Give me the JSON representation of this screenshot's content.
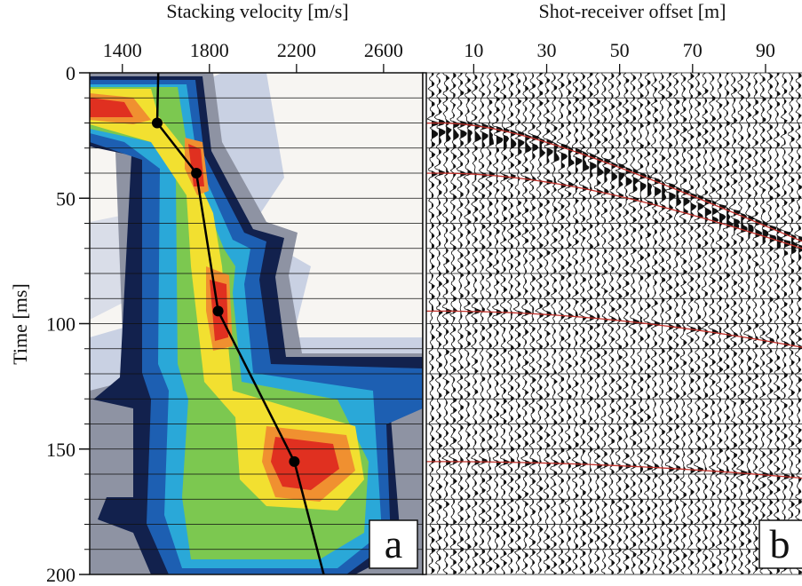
{
  "chart_data": [
    {
      "type": "line",
      "title": "Stacking velocity [m/s]",
      "y_label": "Time [ms]",
      "panel_label": "a",
      "xlim": [
        1250,
        2780
      ],
      "xticks": [
        1400,
        1800,
        2200,
        2600
      ],
      "ylim": [
        0,
        200
      ],
      "yticks": [
        0,
        50,
        100,
        150,
        200
      ],
      "minor_yticks": [
        0,
        10,
        20,
        30,
        40,
        50,
        60,
        70,
        80,
        90,
        100,
        110,
        120,
        130,
        140,
        150,
        160,
        170,
        180,
        190,
        200
      ],
      "color": "#000000",
      "x": [
        1565,
        1560,
        1740,
        1840,
        2190,
        2325
      ],
      "values": [
        0,
        20,
        40,
        95,
        155,
        200
      ],
      "picks": {
        "x": [
          1560,
          1740,
          1840,
          2190
        ],
        "values": [
          20,
          40,
          95,
          155
        ]
      }
    },
    {
      "type": "seismic",
      "title": "Shot-receiver offset [m]",
      "panel_label": "b",
      "xlim": [
        -3,
        100
      ],
      "xticks": [
        10,
        30,
        50,
        70,
        90
      ],
      "ylim": [
        0,
        200
      ],
      "minor_yticks": [
        0,
        10,
        20,
        30,
        40,
        50,
        60,
        70,
        80,
        90,
        100,
        110,
        120,
        130,
        140,
        150,
        160,
        170,
        180,
        190,
        200
      ],
      "reflections": {
        "t0": [
          20,
          40,
          95,
          155
        ],
        "velocity": [
          1560,
          1740,
          1840,
          2190
        ],
        "color": "#c0302a"
      }
    }
  ]
}
